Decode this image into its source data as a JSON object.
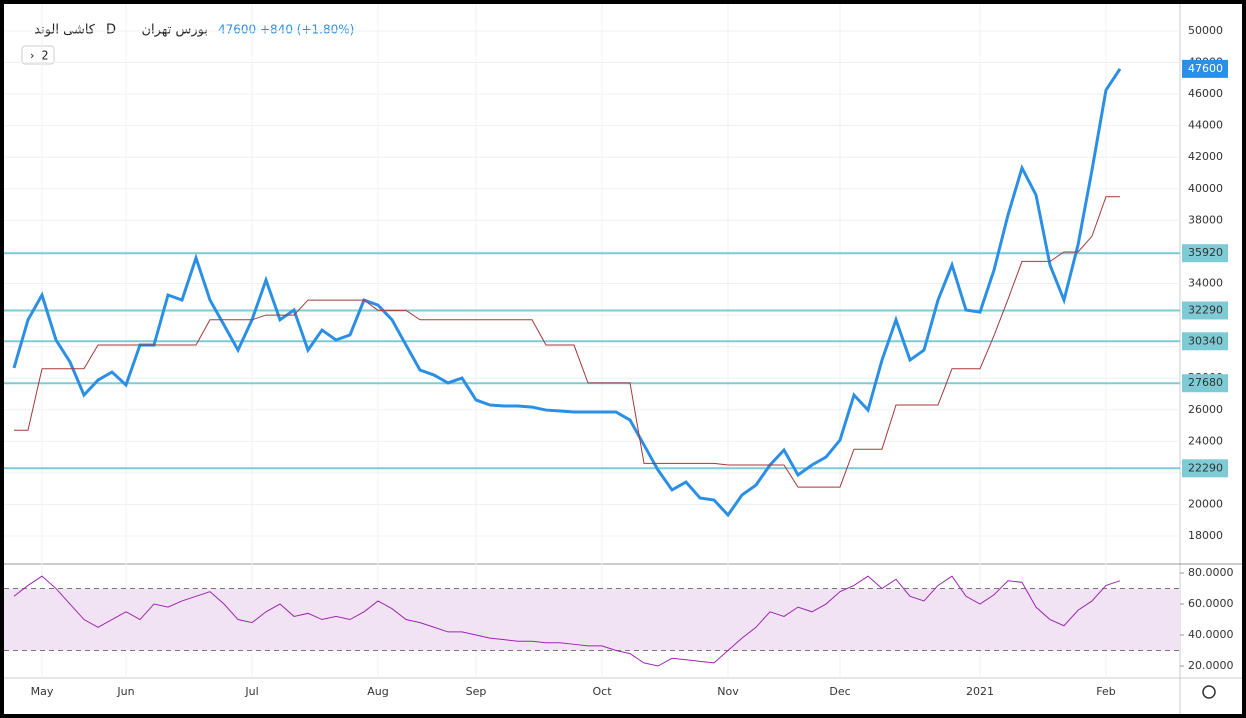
{
  "chart_data": {
    "type": "line",
    "symbol": "کاشی الوند",
    "interval": "D",
    "exchange": "بورس تهران",
    "last_price": 47600,
    "change": "+840 (+1.80%)",
    "panel_button": "2",
    "categories": [
      null,
      null,
      "May",
      null,
      null,
      null,
      null,
      null,
      "Jun",
      null,
      null,
      null,
      null,
      null,
      null,
      null,
      null,
      "Jul",
      null,
      null,
      null,
      null,
      null,
      null,
      null,
      null,
      "Aug",
      null,
      null,
      null,
      null,
      null,
      null,
      "Sep",
      null,
      null,
      null,
      null,
      null,
      null,
      null,
      null,
      "Oct",
      null,
      null,
      null,
      null,
      null,
      null,
      null,
      null,
      "Nov",
      null,
      null,
      null,
      null,
      null,
      null,
      null,
      "Dec",
      null,
      null,
      null,
      null,
      null,
      null,
      null,
      null,
      null,
      "2021",
      null,
      null,
      null,
      null,
      null,
      null,
      null,
      null,
      "Feb",
      null
    ],
    "series": [
      {
        "color": "#2b8fe6",
        "values": [
          28650,
          31700,
          33270,
          30420,
          29030,
          26930,
          27880,
          28390,
          27570,
          30100,
          30100,
          33270,
          32950,
          35620,
          32950,
          31370,
          29780,
          31700,
          34220,
          31700,
          32320,
          29780,
          31050,
          30420,
          30740,
          32950,
          32630,
          31700,
          30100,
          28520,
          28200,
          27700,
          28010,
          26620,
          26300,
          26240,
          26240,
          26170,
          25980,
          25920,
          25860,
          25860,
          25860,
          25860,
          25350,
          23770,
          22180,
          20920,
          21420,
          20410,
          20280,
          19330,
          20600,
          21230,
          22500,
          23450,
          21870,
          22500,
          23000,
          24080,
          26930,
          25980,
          29150,
          31700,
          29150,
          29780,
          32950,
          35170,
          32320,
          32190,
          34850,
          38340,
          41320,
          39610,
          35170,
          32950,
          36440,
          41190,
          46260,
          47600
        ]
      },
      {
        "color": "#a33a3a",
        "values": [
          24700,
          24700,
          28600,
          28600,
          28600,
          28600,
          30100,
          30100,
          30100,
          30100,
          30100,
          30100,
          30100,
          30100,
          31700,
          31700,
          31700,
          31700,
          32000,
          32000,
          32000,
          32950,
          32950,
          32950,
          32950,
          32950,
          32300,
          32300,
          32300,
          31700,
          31700,
          31700,
          31700,
          31700,
          31700,
          31700,
          31700,
          31700,
          30100,
          30100,
          30100,
          27700,
          27700,
          27700,
          27700,
          22600,
          22600,
          22600,
          22600,
          22600,
          22600,
          22500,
          22500,
          22500,
          22500,
          22500,
          21100,
          21100,
          21100,
          21100,
          23500,
          23500,
          23500,
          26300,
          26300,
          26300,
          26300,
          28600,
          28600,
          28600,
          30700,
          33000,
          35400,
          35400,
          35400,
          36000,
          36000,
          37000,
          39500,
          39500
        ]
      }
    ],
    "ylim": [
      16290,
      51330
    ],
    "yticks": [
      18000,
      20000,
      22000,
      24000,
      26000,
      28000,
      30000,
      32000,
      34000,
      36000,
      38000,
      40000,
      42000,
      44000,
      46000,
      48000,
      50000
    ],
    "levels": [
      35920,
      32290,
      30340,
      27680,
      22290
    ],
    "level_color": "#7ecbd6",
    "rsi": {
      "color": "#9c27b0",
      "values": [
        65,
        72,
        78,
        70,
        60,
        50,
        45,
        50,
        55,
        50,
        60,
        58,
        62,
        65,
        68,
        60,
        50,
        48,
        55,
        60,
        52,
        54,
        50,
        52,
        50,
        55,
        62,
        57,
        50,
        48,
        45,
        42,
        42,
        40,
        38,
        37,
        36,
        36,
        35,
        35,
        34,
        33,
        33,
        30,
        28,
        22,
        20,
        25,
        24,
        23,
        22,
        30,
        38,
        45,
        55,
        52,
        58,
        55,
        60,
        68,
        72,
        78,
        70,
        76,
        65,
        62,
        72,
        78,
        65,
        60,
        66,
        75,
        74,
        58,
        50,
        46,
        56,
        62,
        72,
        75
      ],
      "ylim": [
        12.9,
        85.2
      ],
      "yticks": [
        {
          "value": 20,
          "label": "20.0000"
        },
        {
          "value": 40,
          "label": "40.0000"
        },
        {
          "value": 60,
          "label": "60.0000"
        },
        {
          "value": 80,
          "label": "80.0000"
        }
      ],
      "bands": [
        70,
        30
      ]
    }
  }
}
